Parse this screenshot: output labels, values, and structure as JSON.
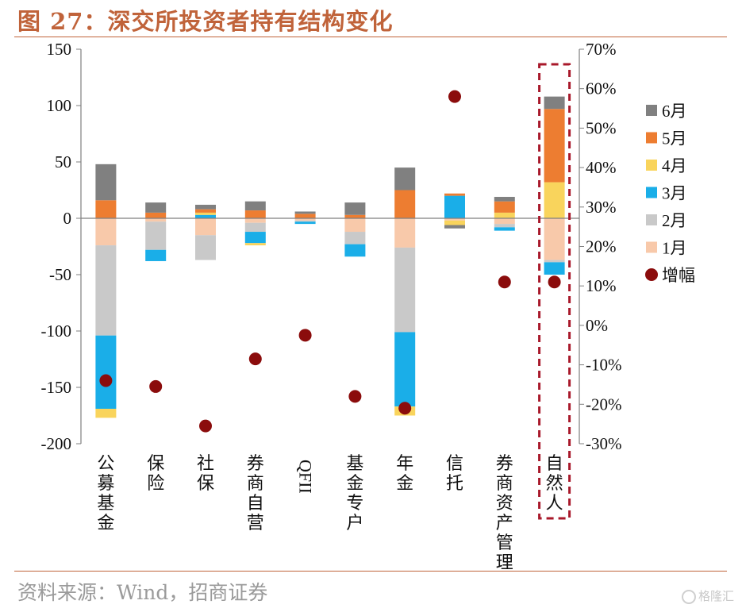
{
  "header": {
    "title": "图 27：深交所投资者持有结构变化"
  },
  "footer": {
    "source": "资料来源：Wind，招商证券",
    "watermark": "格隆汇"
  },
  "chart_data": {
    "type": "bar",
    "stacked": true,
    "categories": [
      "公募基金",
      "保险",
      "社保",
      "券商自营",
      "QFII",
      "基金专户",
      "年金",
      "信托",
      "券商资产管理",
      "自然人"
    ],
    "series": [
      {
        "name": "1月",
        "color": "#f8c9aa",
        "values": [
          -24,
          -3,
          -15,
          -4,
          -2,
          -12,
          -26,
          -2,
          -5,
          -37
        ]
      },
      {
        "name": "2月",
        "color": "#c9c9c9",
        "values": [
          -80,
          -25,
          -22,
          -8,
          -1,
          -11,
          -75,
          0,
          -3,
          -2
        ]
      },
      {
        "name": "3月",
        "color": "#1aaee8",
        "values": [
          -65,
          -10,
          3,
          -10,
          -2,
          -11,
          -66,
          20,
          -3,
          -11
        ]
      },
      {
        "name": "4月",
        "color": "#f9d45c",
        "values": [
          -8,
          0,
          2,
          -2,
          0,
          0,
          -8,
          -4,
          5,
          32
        ]
      },
      {
        "name": "5月",
        "color": "#ed7d31",
        "values": [
          16,
          5,
          3,
          7,
          4,
          3,
          25,
          2,
          10,
          65
        ]
      },
      {
        "name": "6月",
        "color": "#808080",
        "values": [
          32,
          9,
          4,
          8,
          2,
          11,
          20,
          -3,
          4,
          11
        ]
      }
    ],
    "line_series": {
      "name": "增幅",
      "axis": "right",
      "color": "#8b0c0c",
      "values": [
        -14,
        -15.5,
        -25.5,
        -8.5,
        -2.5,
        -18,
        -21,
        58,
        11,
        11
      ]
    },
    "y_left": {
      "min": -200,
      "max": 150,
      "ticks": [
        150,
        100,
        50,
        0,
        -50,
        -100,
        -150,
        -200
      ]
    },
    "y_right": {
      "min": -30,
      "max": 70,
      "ticks": [
        "70%",
        "60%",
        "50%",
        "40%",
        "30%",
        "20%",
        "10%",
        "0%",
        "-10%",
        "-20%",
        "-30%"
      ]
    },
    "legend": {
      "position": "right",
      "order": [
        "6月",
        "5月",
        "4月",
        "3月",
        "2月",
        "1月",
        "增幅"
      ]
    },
    "highlight": {
      "category": "自然人",
      "style": "dashed-box",
      "color": "#a8182a"
    },
    "grid": false
  }
}
